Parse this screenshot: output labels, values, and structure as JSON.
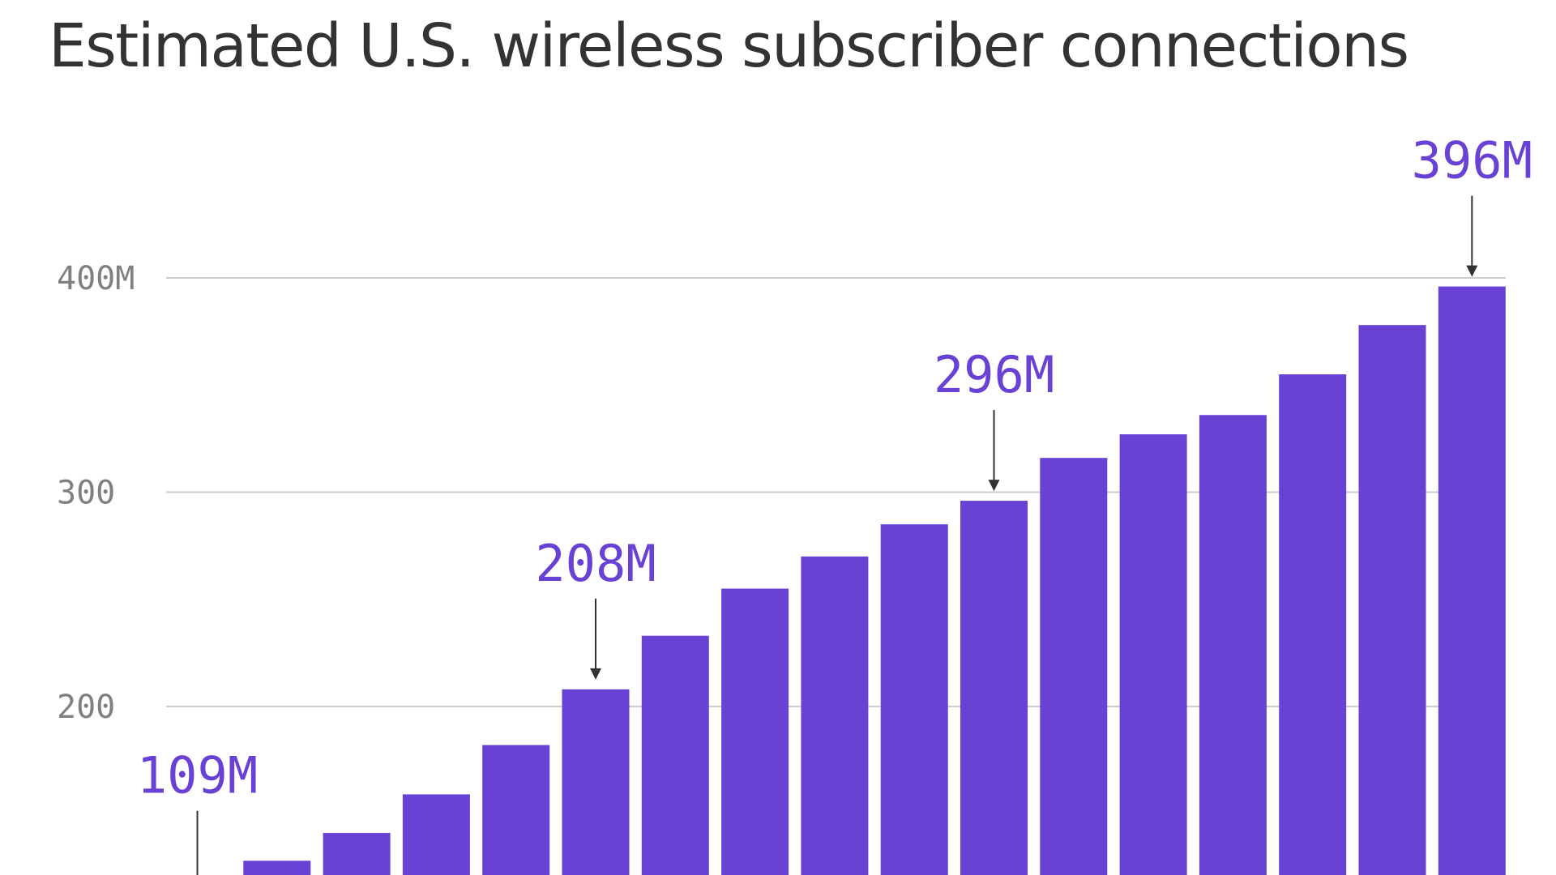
{
  "chart_data": {
    "type": "bar",
    "title": "Estimated U.S. wireless subscriber connections",
    "xlabel": "",
    "ylabel": "",
    "y_unit_suffix": "M",
    "ylim": [
      100,
      400
    ],
    "grid": true,
    "bar_color": "#6941d4",
    "tick_labels": [
      "200",
      "300",
      "400M"
    ],
    "tick_values": [
      200,
      300,
      400
    ],
    "values": [
      109,
      128,
      141,
      159,
      182,
      208,
      233,
      255,
      270,
      285,
      296,
      316,
      327,
      336,
      355,
      378,
      396
    ],
    "annotations": [
      {
        "index": 0,
        "label": "109M",
        "value": 109
      },
      {
        "index": 5,
        "label": "208M",
        "value": 208
      },
      {
        "index": 10,
        "label": "296M",
        "value": 296
      },
      {
        "index": 16,
        "label": "396M",
        "value": 396
      }
    ]
  }
}
